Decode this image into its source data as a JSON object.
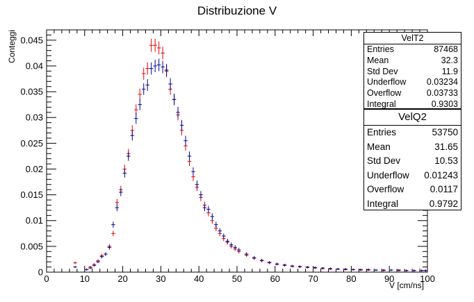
{
  "chart_data": {
    "type": "scatter",
    "title": "Distribuzione V",
    "xlabel": "V [cm/ns]",
    "ylabel": "Conteggi",
    "xlim": [
      0,
      100
    ],
    "ylim": [
      0,
      0.047
    ],
    "x_ticks": [
      0,
      10,
      20,
      30,
      40,
      50,
      60,
      70,
      80,
      90,
      100
    ],
    "y_ticks": [
      0,
      0.005,
      0.01,
      0.015,
      0.02,
      0.025,
      0.03,
      0.035,
      0.04,
      0.045
    ],
    "y_tick_labels": [
      "0",
      "0.005",
      "0.01",
      "0.015",
      "0.02",
      "0.025",
      "0.03",
      "0.035",
      "0.04",
      "0.045"
    ],
    "grid": false,
    "bin_width": 1,
    "series": [
      {
        "name": "VelT2",
        "color": "#e00000",
        "x": [
          7.5,
          10.5,
          11.5,
          12.5,
          13.5,
          14.5,
          15.5,
          16.5,
          17.5,
          18.5,
          19.5,
          20.5,
          21.5,
          22.5,
          23.5,
          24.5,
          25.5,
          26.5,
          27.5,
          28.5,
          29.5,
          30.5,
          31.5,
          32.5,
          33.5,
          34.5,
          35.5,
          36.5,
          37.5,
          38.5,
          39.5,
          40.5,
          41.5,
          42.5,
          43.5,
          44.5,
          45.5,
          46.5,
          47.5,
          48.5,
          49.5,
          50.5,
          52.5,
          54.5,
          56.5,
          58.5,
          60.5,
          62.5,
          64.5,
          66.5,
          68.5,
          70.5,
          72.5,
          74.5,
          76.5,
          78.5,
          80.5,
          82.5,
          84.5,
          86.5,
          88.5,
          90.5,
          92.5,
          94.5,
          96.5,
          98.5,
          99.5
        ],
        "y": [
          0.0018,
          0.0005,
          0.001,
          0.0015,
          0.0022,
          0.0032,
          0.0035,
          0.005,
          0.0075,
          0.0135,
          0.016,
          0.02,
          0.023,
          0.0275,
          0.0315,
          0.0345,
          0.0385,
          0.0395,
          0.044,
          0.044,
          0.0435,
          0.0425,
          0.039,
          0.0355,
          0.0335,
          0.0305,
          0.0275,
          0.0245,
          0.0215,
          0.0185,
          0.0165,
          0.0145,
          0.013,
          0.0115,
          0.01,
          0.0085,
          0.0075,
          0.0065,
          0.0058,
          0.005,
          0.0045,
          0.004,
          0.0033,
          0.0027,
          0.0022,
          0.0018,
          0.0015,
          0.0013,
          0.0011,
          0.001,
          0.0009,
          0.0008,
          0.0007,
          0.0006,
          0.0006,
          0.0005,
          0.0005,
          0.0004,
          0.0004,
          0.0004,
          0.0003,
          0.0004,
          0.0003,
          0.0003,
          0.0003,
          0.0003,
          0.0003
        ]
      },
      {
        "name": "VelQ2",
        "color": "#00008b",
        "x": [
          7.5,
          10.5,
          11.5,
          12.5,
          13.5,
          14.5,
          15.5,
          16.5,
          17.5,
          18.5,
          19.5,
          20.5,
          21.5,
          22.5,
          23.5,
          24.5,
          25.5,
          26.5,
          27.5,
          28.5,
          29.5,
          30.5,
          31.5,
          32.5,
          33.5,
          34.5,
          35.5,
          36.5,
          37.5,
          38.5,
          39.5,
          40.5,
          41.5,
          42.5,
          43.5,
          44.5,
          45.5,
          46.5,
          47.5,
          48.5,
          49.5,
          50.5,
          52.5,
          54.5,
          56.5,
          58.5,
          60.5,
          62.5,
          64.5,
          66.5,
          68.5,
          70.5,
          72.5,
          74.5,
          76.5,
          78.5,
          80.5,
          82.5,
          84.5,
          86.5,
          88.5,
          90.5,
          92.5,
          94.5,
          96.5,
          98.5,
          99.5
        ],
        "y": [
          0.001,
          0.0005,
          0.0008,
          0.0013,
          0.002,
          0.003,
          0.0035,
          0.0048,
          0.0092,
          0.0125,
          0.0155,
          0.0192,
          0.0225,
          0.0265,
          0.0298,
          0.0325,
          0.0355,
          0.0363,
          0.0395,
          0.04,
          0.0402,
          0.0398,
          0.0392,
          0.0365,
          0.0335,
          0.031,
          0.0285,
          0.0255,
          0.0225,
          0.0195,
          0.017,
          0.015,
          0.0125,
          0.0122,
          0.0108,
          0.0092,
          0.008,
          0.007,
          0.006,
          0.0053,
          0.0048,
          0.0043,
          0.0035,
          0.0028,
          0.0023,
          0.0019,
          0.0016,
          0.0014,
          0.0012,
          0.0011,
          0.001,
          0.0009,
          0.0008,
          0.0007,
          0.0006,
          0.0006,
          0.0005,
          0.0005,
          0.0005,
          0.0004,
          0.0004,
          0.0004,
          0.0004,
          0.0003,
          0.0003,
          0.0003,
          0.0003
        ]
      }
    ]
  },
  "stats": [
    {
      "name": "VelT2",
      "rows": [
        {
          "label": "Entries",
          "value": "87468"
        },
        {
          "label": "Mean",
          "value": "32.3"
        },
        {
          "label": "Std Dev",
          "value": "11.9"
        },
        {
          "label": "Underflow",
          "value": "0.03234"
        },
        {
          "label": "Overflow",
          "value": "0.03733"
        },
        {
          "label": "Integral",
          "value": "0.9303"
        }
      ]
    },
    {
      "name": "VelQ2",
      "rows": [
        {
          "label": "Entries",
          "value": "53750"
        },
        {
          "label": "Mean",
          "value": "31.65"
        },
        {
          "label": "Std Dev",
          "value": "10.53"
        },
        {
          "label": "Underflow",
          "value": "0.01243"
        },
        {
          "label": "Overflow",
          "value": "0.0117"
        },
        {
          "label": "Integral",
          "value": "0.9792"
        }
      ]
    }
  ]
}
